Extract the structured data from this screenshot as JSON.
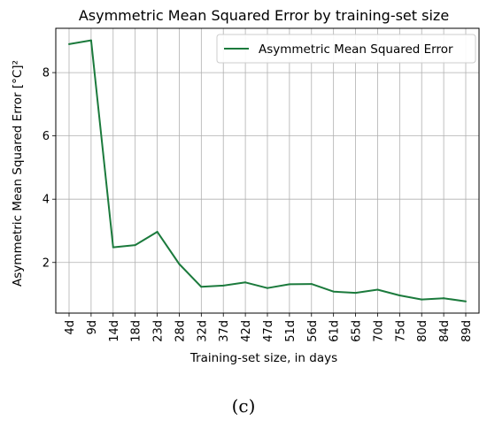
{
  "chart_data": {
    "type": "line",
    "title": "Asymmetric Mean Squared Error by training-set size",
    "xlabel": "Training-set size, in days",
    "ylabel": "Asymmetric Mean Squared Error [°C]²",
    "categories": [
      "4d",
      "9d",
      "14d",
      "18d",
      "23d",
      "28d",
      "32d",
      "37d",
      "42d",
      "47d",
      "51d",
      "56d",
      "61d",
      "65d",
      "70d",
      "75d",
      "80d",
      "84d",
      "89d"
    ],
    "series": [
      {
        "name": "Asymmetric Mean Squared Error",
        "values": [
          8.9,
          9.02,
          2.48,
          2.55,
          2.97,
          1.95,
          1.23,
          1.27,
          1.37,
          1.19,
          1.31,
          1.32,
          1.08,
          1.04,
          1.14,
          0.96,
          0.83,
          0.87,
          0.77
        ],
        "color": "#1b7a3c"
      }
    ],
    "ylim": [
      0.4,
      9.4
    ],
    "yticks": [
      2,
      4,
      6,
      8
    ],
    "grid": true,
    "legend_position": "top-right"
  },
  "caption": "(c)"
}
